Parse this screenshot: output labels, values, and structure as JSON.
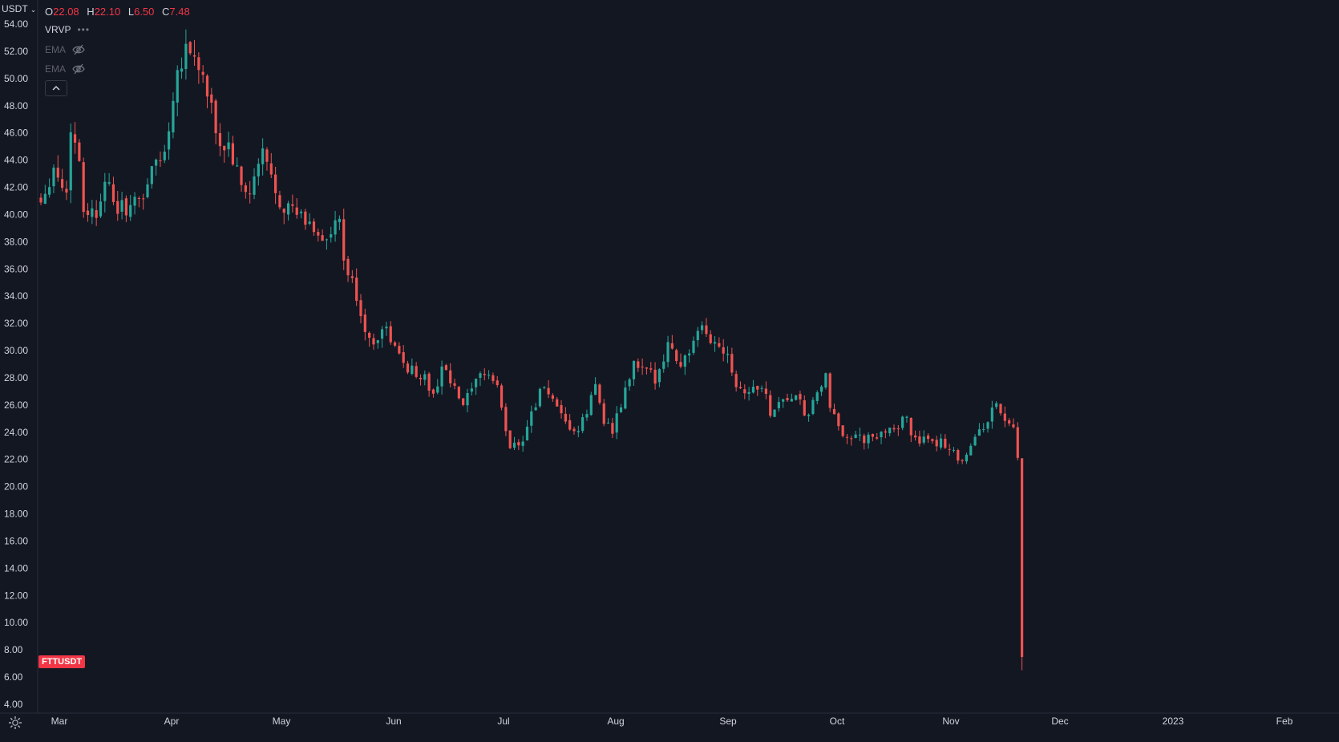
{
  "legend": {
    "open_label": "O",
    "open": "22.08",
    "high_label": "H",
    "high": "22.10",
    "low_label": "L",
    "low": "6.50",
    "close_label": "C",
    "close": "7.48"
  },
  "indicators": [
    {
      "name": "VRVP",
      "more": "•••"
    },
    {
      "name": "EMA"
    },
    {
      "name": "EMA"
    }
  ],
  "price_unit": "USDT",
  "symbol": "FTTUSDT",
  "colors": {
    "background": "#131722",
    "up": "#26a69a",
    "down": "#ef5350",
    "axis_text": "#d1d4dc",
    "tag": "#f23645"
  },
  "icons": {
    "unit_dropdown": "chevron-down-icon",
    "more": "more-dots-icon",
    "visibility": "eye-off-icon",
    "collapse": "chevron-up-icon",
    "settings": "gear-icon"
  },
  "chart_data": {
    "type": "candlestick",
    "y_axis": {
      "range": [
        4,
        54
      ],
      "ticks": [
        "54.00",
        "52.00",
        "50.00",
        "48.00",
        "46.00",
        "44.00",
        "42.00",
        "40.00",
        "38.00",
        "36.00",
        "34.00",
        "32.00",
        "30.00",
        "28.00",
        "26.00",
        "24.00",
        "22.00",
        "20.00",
        "18.00",
        "16.00",
        "14.00",
        "12.00",
        "10.00",
        "8.00",
        "6.00",
        "4.00"
      ]
    },
    "x_axis": {
      "ticks": [
        "Mar",
        "Apr",
        "May",
        "Jun",
        "Jul",
        "Aug",
        "Sep",
        "Oct",
        "Nov",
        "Dec",
        "2023",
        "Feb"
      ]
    },
    "close_path": [
      [
        0,
        41.0
      ],
      [
        3,
        43.5
      ],
      [
        6,
        41.5
      ],
      [
        7,
        46.5
      ],
      [
        9,
        44.0
      ],
      [
        10,
        40.5
      ],
      [
        13,
        40.0
      ],
      [
        14,
        41.5
      ],
      [
        15,
        43.0
      ],
      [
        17,
        40.5
      ],
      [
        20,
        40.5
      ],
      [
        21,
        40.5
      ],
      [
        24,
        41.5
      ],
      [
        27,
        44.0
      ],
      [
        29,
        44.5
      ],
      [
        30,
        46.5
      ],
      [
        31,
        49.0
      ],
      [
        32,
        50.5
      ],
      [
        34,
        52.5
      ],
      [
        37,
        51.0
      ],
      [
        40,
        47.5
      ],
      [
        42,
        45.0
      ],
      [
        44,
        45.0
      ],
      [
        47,
        42.0
      ],
      [
        49,
        41.5
      ],
      [
        52,
        44.5
      ],
      [
        56,
        41.0
      ],
      [
        60,
        40.0
      ],
      [
        64,
        39.0
      ],
      [
        67,
        38.0
      ],
      [
        70,
        39.5
      ],
      [
        71,
        36.5
      ],
      [
        74,
        34.0
      ],
      [
        77,
        30.5
      ],
      [
        80,
        31.5
      ],
      [
        81,
        31.5
      ],
      [
        84,
        29.5
      ],
      [
        87,
        28.5
      ],
      [
        90,
        28.0
      ],
      [
        92,
        26.5
      ],
      [
        94,
        29.0
      ],
      [
        97,
        27.0
      ],
      [
        99,
        26.0
      ],
      [
        101,
        27.0
      ],
      [
        104,
        28.5
      ],
      [
        107,
        27.5
      ],
      [
        108,
        25.5
      ],
      [
        110,
        23.0
      ],
      [
        113,
        23.5
      ],
      [
        115,
        25.5
      ],
      [
        118,
        27.5
      ],
      [
        121,
        25.5
      ],
      [
        123,
        24.5
      ],
      [
        126,
        24.0
      ],
      [
        128,
        25.5
      ],
      [
        130,
        27.5
      ],
      [
        132,
        25.0
      ],
      [
        134,
        24.0
      ],
      [
        137,
        27.0
      ],
      [
        139,
        29.0
      ],
      [
        141,
        28.5
      ],
      [
        144,
        28.0
      ],
      [
        147,
        30.5
      ],
      [
        150,
        29.0
      ],
      [
        152,
        30.0
      ],
      [
        155,
        31.5
      ],
      [
        158,
        30.5
      ],
      [
        161,
        30.0
      ],
      [
        163,
        27.5
      ],
      [
        166,
        27.0
      ],
      [
        169,
        27.5
      ],
      [
        171,
        25.5
      ],
      [
        174,
        26.5
      ],
      [
        177,
        26.5
      ],
      [
        180,
        25.0
      ],
      [
        182,
        27.0
      ],
      [
        184,
        28.0
      ],
      [
        185,
        25.5
      ],
      [
        188,
        24.0
      ],
      [
        191,
        23.5
      ],
      [
        194,
        23.5
      ],
      [
        196,
        23.5
      ],
      [
        199,
        24.5
      ],
      [
        201,
        24.5
      ],
      [
        203,
        25.0
      ],
      [
        204,
        24.0
      ],
      [
        206,
        23.5
      ],
      [
        209,
        23.0
      ],
      [
        211,
        23.5
      ],
      [
        214,
        22.5
      ],
      [
        216,
        22.0
      ],
      [
        218,
        23.0
      ],
      [
        220,
        24.0
      ],
      [
        222,
        25.0
      ],
      [
        224,
        26.0
      ],
      [
        226,
        25.0
      ],
      [
        228,
        24.0
      ],
      [
        229,
        22.0
      ],
      [
        230,
        7.5
      ]
    ],
    "last_candle": {
      "open": 22.08,
      "high": 22.1,
      "low": 6.5,
      "close": 7.48
    }
  }
}
